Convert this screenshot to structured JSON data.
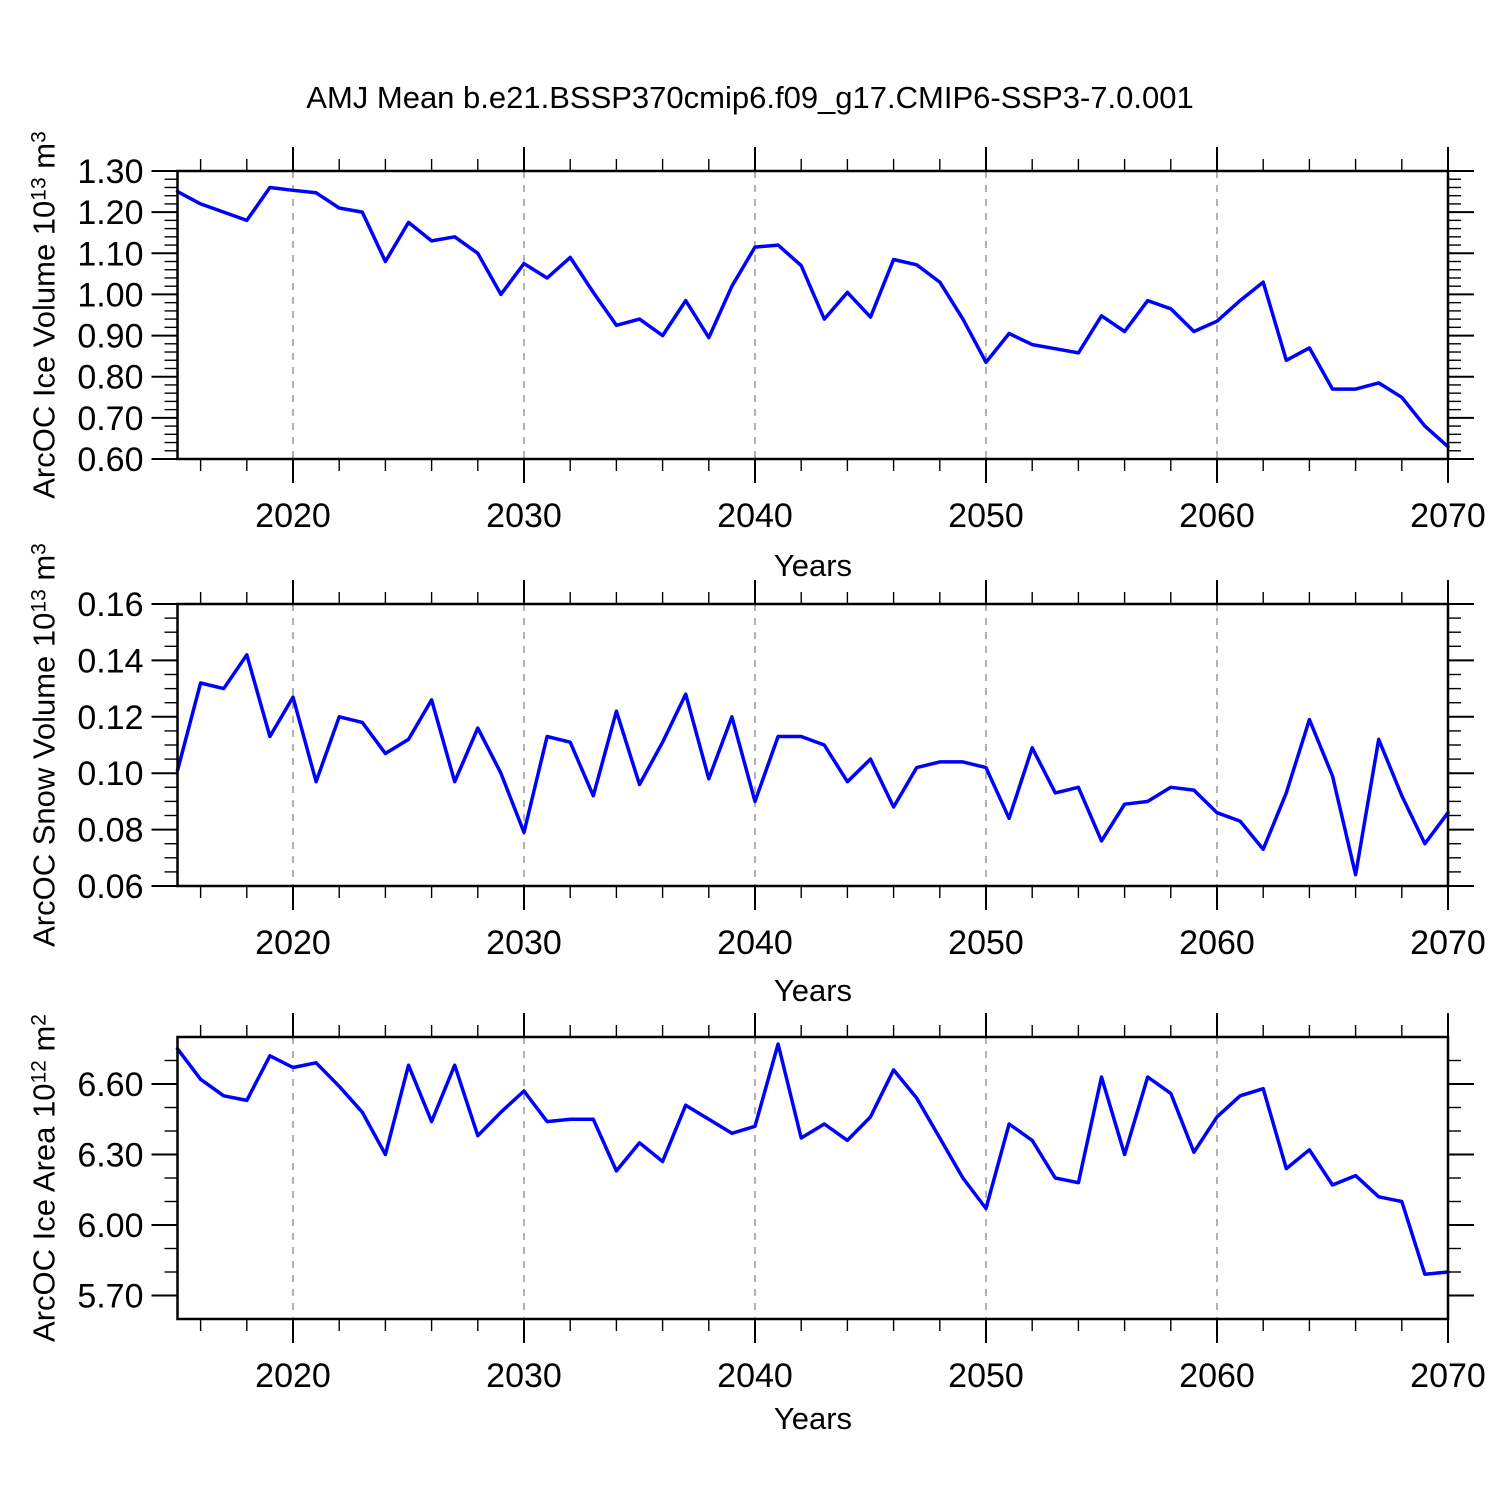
{
  "title": "AMJ Mean b.e21.BSSP370cmip6.f09_g17.CMIP6-SSP3-7.0.001",
  "style": {
    "line_color": "#0000ff",
    "grid_color": "#999999",
    "axis_color": "#000000",
    "background": "#ffffff"
  },
  "chart_data": [
    {
      "type": "line",
      "title": "AMJ Mean b.e21.BSSP370cmip6.f09_g17.CMIP6-SSP3-7.0.001",
      "xlabel": "Years",
      "ylabel": "ArcOC Ice Volume 10^13 m^3",
      "ylabel_parts": {
        "base": "ArcOC Ice Volume 10",
        "exp": "13",
        "unit": " m",
        "unit_exp": "3"
      },
      "x_start": 2015,
      "x_step": 1,
      "xlim": [
        2015,
        2070
      ],
      "ylim": [
        0.6,
        1.3
      ],
      "yticks": [
        0.6,
        0.7,
        0.8,
        0.9,
        1.0,
        1.1,
        1.2,
        1.3
      ],
      "y_minor_step": 0.02,
      "xticks": [
        2020,
        2030,
        2040,
        2050,
        2060,
        2070
      ],
      "x_minor_step": 2,
      "grid_at": [
        2020,
        2030,
        2040,
        2050,
        2060
      ],
      "legend": "none",
      "grid": "vertical-dashed",
      "values": [
        1.25,
        1.22,
        1.2,
        1.18,
        1.26,
        1.253,
        1.247,
        1.21,
        1.2,
        1.08,
        1.175,
        1.13,
        1.14,
        1.1,
        1.0,
        1.075,
        1.04,
        1.09,
        1.005,
        0.925,
        0.94,
        0.9,
        0.985,
        0.895,
        1.02,
        1.115,
        1.12,
        1.07,
        0.94,
        1.005,
        0.945,
        1.085,
        1.072,
        1.03,
        0.94,
        0.835,
        0.905,
        0.878,
        0.868,
        0.858,
        0.948,
        0.91,
        0.985,
        0.965,
        0.91,
        0.935,
        0.985,
        1.03,
        0.84,
        0.87,
        0.77,
        0.77,
        0.785,
        0.75,
        0.68,
        0.63
      ]
    },
    {
      "type": "line",
      "title": "",
      "xlabel": "Years",
      "ylabel": "ArcOC Snow Volume 10^13 m^3",
      "ylabel_parts": {
        "base": "ArcOC Snow Volume 10",
        "exp": "13",
        "unit": " m",
        "unit_exp": "3"
      },
      "x_start": 2015,
      "x_step": 1,
      "xlim": [
        2015,
        2070
      ],
      "ylim": [
        0.06,
        0.16
      ],
      "yticks": [
        0.06,
        0.08,
        0.1,
        0.12,
        0.14,
        0.16
      ],
      "y_minor_step": 0.005,
      "xticks": [
        2020,
        2030,
        2040,
        2050,
        2060,
        2070
      ],
      "x_minor_step": 2,
      "grid_at": [
        2020,
        2030,
        2040,
        2050,
        2060
      ],
      "legend": "none",
      "grid": "vertical-dashed",
      "values": [
        0.101,
        0.132,
        0.13,
        0.142,
        0.113,
        0.127,
        0.097,
        0.12,
        0.118,
        0.107,
        0.112,
        0.126,
        0.097,
        0.116,
        0.1,
        0.079,
        0.113,
        0.111,
        0.092,
        0.122,
        0.096,
        0.111,
        0.128,
        0.098,
        0.12,
        0.09,
        0.113,
        0.113,
        0.11,
        0.097,
        0.105,
        0.088,
        0.102,
        0.104,
        0.104,
        0.102,
        0.084,
        0.109,
        0.093,
        0.095,
        0.076,
        0.089,
        0.09,
        0.095,
        0.094,
        0.086,
        0.083,
        0.073,
        0.093,
        0.119,
        0.099,
        0.064,
        0.112,
        0.092,
        0.075,
        0.086
      ]
    },
    {
      "type": "line",
      "title": "",
      "xlabel": "Years",
      "ylabel": "ArcOC Ice Area 10^12 m^2",
      "ylabel_parts": {
        "base": "ArcOC Ice Area 10",
        "exp": "12",
        "unit": " m",
        "unit_exp": "2"
      },
      "x_start": 2015,
      "x_step": 1,
      "xlim": [
        2015,
        2070
      ],
      "ylim": [
        5.6,
        6.8
      ],
      "yticks": [
        5.7,
        6.0,
        6.3,
        6.6
      ],
      "y_minor_step": 0.1,
      "xticks": [
        2020,
        2030,
        2040,
        2050,
        2060,
        2070
      ],
      "x_minor_step": 2,
      "grid_at": [
        2020,
        2030,
        2040,
        2050,
        2060
      ],
      "legend": "none",
      "grid": "vertical-dashed",
      "values": [
        6.75,
        6.62,
        6.55,
        6.53,
        6.72,
        6.67,
        6.69,
        6.59,
        6.48,
        6.3,
        6.68,
        6.44,
        6.68,
        6.38,
        6.48,
        6.57,
        6.44,
        6.45,
        6.45,
        6.23,
        6.35,
        6.27,
        6.51,
        6.45,
        6.39,
        6.42,
        6.77,
        6.37,
        6.43,
        6.36,
        6.46,
        6.66,
        6.54,
        6.37,
        6.2,
        6.07,
        6.43,
        6.36,
        6.2,
        6.18,
        6.63,
        6.3,
        6.63,
        6.56,
        6.31,
        6.46,
        6.55,
        6.58,
        6.24,
        6.32,
        6.17,
        6.21,
        6.12,
        6.1,
        5.79,
        5.8
      ]
    }
  ]
}
